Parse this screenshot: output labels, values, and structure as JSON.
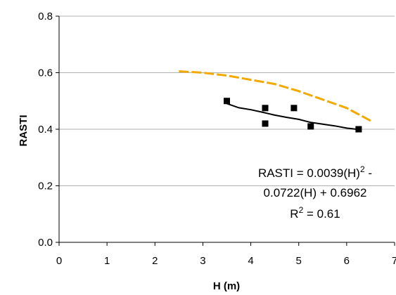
{
  "chart_data": {
    "type": "scatter",
    "xlabel": "H (m)",
    "ylabel": "RASTI",
    "xlim": [
      0,
      7
    ],
    "ylim": [
      0.0,
      0.8
    ],
    "x_ticks": [
      "0",
      "1",
      "2",
      "3",
      "4",
      "5",
      "6",
      "7"
    ],
    "y_ticks": [
      "0.0",
      "0.2",
      "0.4",
      "0.6",
      "0.8"
    ],
    "grid": "horizontal",
    "series": [
      {
        "kind": "points",
        "marker": "square",
        "color": "#000000",
        "x": [
          3.5,
          4.3,
          4.3,
          4.9,
          5.25,
          6.25
        ],
        "y": [
          0.5,
          0.475,
          0.42,
          0.475,
          0.41,
          0.4
        ]
      },
      {
        "kind": "trendline",
        "style": "solid",
        "color": "#000000",
        "x": [
          3.5,
          3.75,
          4.0,
          4.25,
          4.5,
          4.75,
          5.0,
          5.25,
          5.5,
          5.75,
          6.0,
          6.25
        ],
        "y": [
          0.491,
          0.476,
          0.469,
          0.46,
          0.45,
          0.442,
          0.435,
          0.424,
          0.418,
          0.412,
          0.404,
          0.399
        ]
      },
      {
        "kind": "curve",
        "style": "dashed",
        "color": "#f2a900",
        "x": [
          2.5,
          3.0,
          3.5,
          4.0,
          4.5,
          5.0,
          5.5,
          6.0,
          6.5
        ],
        "y": [
          0.605,
          0.6,
          0.59,
          0.575,
          0.56,
          0.535,
          0.505,
          0.475,
          0.43
        ]
      }
    ],
    "annotation": {
      "line1_prefix": "RASTI = 0.0039(H)",
      "line1_sup": "2",
      "line1_suffix": " -",
      "line2": "0.0722(H) + 0.6962",
      "line3_prefix": "R",
      "line3_sup": "2",
      "line3_suffix": " = 0.61"
    }
  }
}
